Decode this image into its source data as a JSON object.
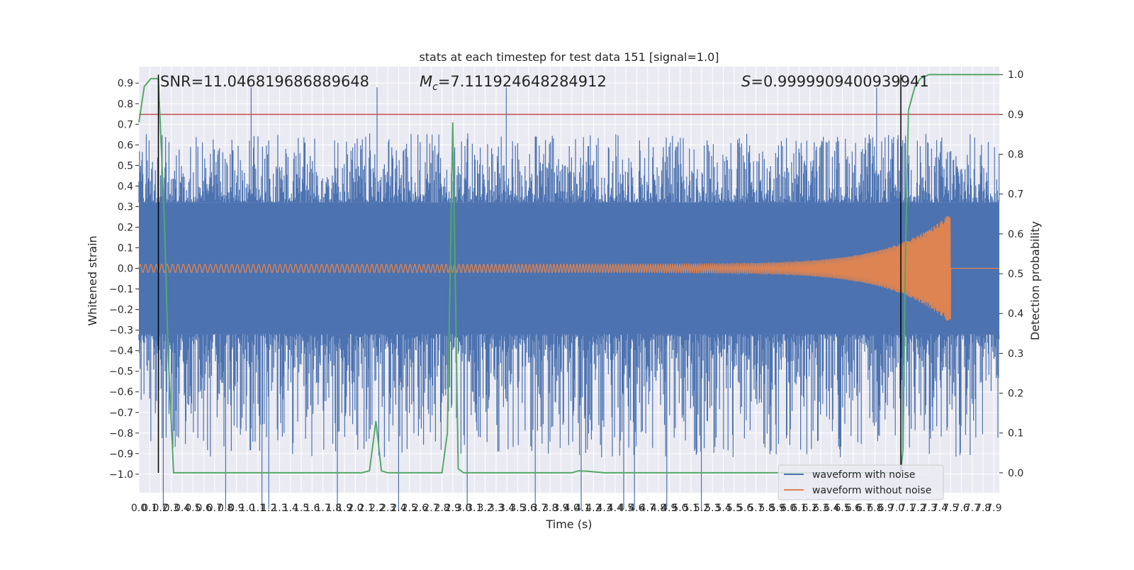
{
  "colors": {
    "plot_background": "#eaeaf2",
    "grid": "#ffffff",
    "noise_series": "#4c72b0",
    "clean_series": "#dd8452",
    "probability_series": "#55a868",
    "threshold_line": "#c44e52",
    "marker_lines": "#000000",
    "text": "#262626"
  },
  "chart_data": {
    "type": "line",
    "title": "stats at each timestep for test data 151 [signal=1.0]",
    "xlabel": "Time (s)",
    "ylabel": "Whitened strain",
    "y2label": "Detection probability",
    "xlim": [
      0.0,
      7.95
    ],
    "ylim": [
      -1.09,
      0.98
    ],
    "y2lim": [
      -0.05,
      1.02
    ],
    "x_ticks": [
      0.0,
      0.1,
      0.2,
      0.3,
      0.4,
      0.5,
      0.6,
      0.7,
      0.8,
      0.9,
      1.0,
      1.1,
      1.2,
      1.3,
      1.4,
      1.5,
      1.6,
      1.7,
      1.8,
      1.9,
      2.0,
      2.1,
      2.2,
      2.3,
      2.4,
      2.5,
      2.6,
      2.7,
      2.8,
      2.9,
      3.0,
      3.1,
      3.2,
      3.3,
      3.4,
      3.5,
      3.6,
      3.7,
      3.8,
      3.9,
      4.0,
      4.1,
      4.2,
      4.3,
      4.4,
      4.5,
      4.6,
      4.7,
      4.8,
      4.9,
      5.0,
      5.1,
      5.2,
      5.3,
      5.4,
      5.5,
      5.6,
      5.7,
      5.8,
      5.9,
      6.0,
      6.1,
      6.2,
      6.3,
      6.4,
      6.5,
      6.6,
      6.7,
      6.8,
      6.9,
      7.0,
      7.1,
      7.2,
      7.3,
      7.4,
      7.5,
      7.6,
      7.7,
      7.8,
      7.9
    ],
    "y_ticks": [
      0.9,
      0.8,
      0.7,
      0.6,
      0.5,
      0.4,
      0.3,
      0.2,
      0.1,
      0.0,
      -0.1,
      -0.2,
      -0.3,
      -0.4,
      -0.5,
      -0.6,
      -0.7,
      -0.8,
      -0.9,
      -1.0
    ],
    "y2_ticks": [
      1.0,
      0.9,
      0.8,
      0.7,
      0.6,
      0.5,
      0.4,
      0.3,
      0.2,
      0.1,
      0.0
    ],
    "grid": true,
    "legend_position": "bottom-right",
    "annotations": {
      "snr": "SNR=11.046819686889648",
      "mc_symbol": "M",
      "mc_subscript": "c",
      "mc_value": "=7.111924648284912",
      "s_symbol": "S",
      "s_value": "=0.9999909400939941"
    },
    "series": [
      {
        "name": "waveform with noise",
        "kind": "noise",
        "envelope_upper": 0.48,
        "envelope_lower": -0.48,
        "core_upper": 0.32,
        "core_lower": -0.32
      },
      {
        "name": "waveform without noise",
        "kind": "chirp",
        "start_amplitude": 0.02,
        "peak_amplitude": 0.27,
        "merger_time": 7.5,
        "start_frequency": 20,
        "end_frequency": 110
      }
    ],
    "detection_probability": {
      "x": [
        0.0,
        0.05,
        0.11,
        0.18,
        0.24,
        0.27,
        0.32,
        0.36,
        0.5,
        1.0,
        1.5,
        2.0,
        2.06,
        2.13,
        2.19,
        2.24,
        2.3,
        2.5,
        2.7,
        2.75,
        2.8,
        2.85,
        2.9,
        2.95,
        3.0,
        3.1,
        3.5,
        3.8,
        3.9,
        4.0,
        4.06,
        4.15,
        4.3,
        5.0,
        6.0,
        6.5,
        7.0,
        7.04,
        7.06,
        7.08,
        7.11,
        7.17,
        7.22,
        7.3,
        7.95
      ],
      "y": [
        0.88,
        0.97,
        0.99,
        0.99,
        0.6,
        0.3,
        0.0,
        0.0,
        0.0,
        0.0,
        0.0,
        0.0,
        0.0,
        0.005,
        0.13,
        0.005,
        0.0,
        0.0,
        0.0,
        0.0,
        0.0,
        0.1,
        0.88,
        0.01,
        0.0,
        0.0,
        0.0,
        0.0,
        0.0,
        0.0,
        0.005,
        0.004,
        0.0,
        0.0,
        0.0,
        0.0,
        0.0,
        0.0,
        0.06,
        0.5,
        0.91,
        0.97,
        0.99,
        1.0,
        1.0
      ]
    },
    "threshold": 0.9,
    "marker_times": [
      0.18,
      7.04
    ]
  }
}
